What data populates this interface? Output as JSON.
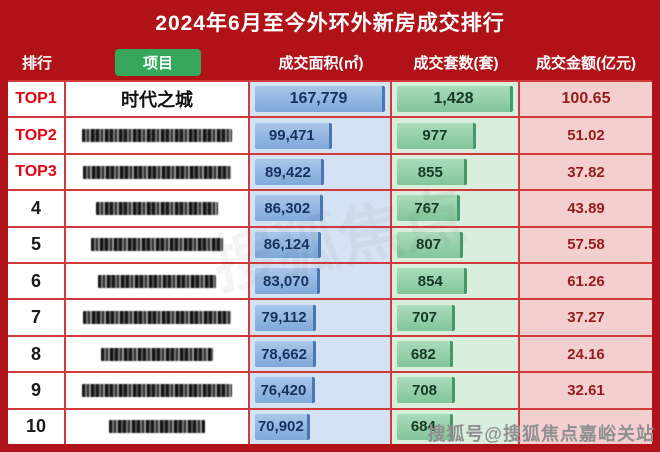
{
  "title": "2024年6月至今外环外新房成交排行",
  "columns": {
    "rank": "排行",
    "project": "项目",
    "area": "成交面积(㎡)",
    "units": "成交套数(套)",
    "amount": "成交金额(亿元)"
  },
  "rows": [
    {
      "rank": "TOP1",
      "project": "时代之城",
      "area": "167,779",
      "units": "1,428",
      "amount": "100.65",
      "area_pct": 100,
      "units_pct": 100,
      "top": true,
      "redacted": false,
      "mosaic_w": 0
    },
    {
      "rank": "TOP2",
      "project": "",
      "area": "99,471",
      "units": "977",
      "amount": "51.02",
      "area_pct": 59,
      "units_pct": 68,
      "top": true,
      "redacted": true,
      "mosaic_w": 150
    },
    {
      "rank": "TOP3",
      "project": "",
      "area": "89,422",
      "units": "855",
      "amount": "37.82",
      "area_pct": 53,
      "units_pct": 60,
      "top": true,
      "redacted": true,
      "mosaic_w": 148
    },
    {
      "rank": "4",
      "project": "",
      "area": "86,302",
      "units": "767",
      "amount": "43.89",
      "area_pct": 52,
      "units_pct": 54,
      "top": false,
      "redacted": true,
      "mosaic_w": 122
    },
    {
      "rank": "5",
      "project": "",
      "area": "86,124",
      "units": "807",
      "amount": "57.58",
      "area_pct": 51,
      "units_pct": 57,
      "top": false,
      "redacted": true,
      "mosaic_w": 132
    },
    {
      "rank": "6",
      "project": "",
      "area": "83,070",
      "units": "854",
      "amount": "61.26",
      "area_pct": 50,
      "units_pct": 60,
      "top": false,
      "redacted": true,
      "mosaic_w": 118
    },
    {
      "rank": "7",
      "project": "",
      "area": "79,112",
      "units": "707",
      "amount": "37.27",
      "area_pct": 47,
      "units_pct": 50,
      "top": false,
      "redacted": true,
      "mosaic_w": 148
    },
    {
      "rank": "8",
      "project": "",
      "area": "78,662",
      "units": "682",
      "amount": "24.16",
      "area_pct": 47,
      "units_pct": 48,
      "top": false,
      "redacted": true,
      "mosaic_w": 112
    },
    {
      "rank": "9",
      "project": "",
      "area": "76,420",
      "units": "708",
      "amount": "32.61",
      "area_pct": 46,
      "units_pct": 50,
      "top": false,
      "redacted": true,
      "mosaic_w": 150
    },
    {
      "rank": "10",
      "project": "",
      "area": "70,902",
      "units": "684",
      "amount": "",
      "area_pct": 42,
      "units_pct": 48,
      "top": false,
      "redacted": true,
      "mosaic_w": 96
    }
  ],
  "watermark": "搜狐号@搜狐焦点嘉峪关站",
  "faint_watermark": "搜狐焦点",
  "colors": {
    "frame": "#b01217",
    "grid": "#d03a3a",
    "top_rank": "#e60012",
    "area_bg": "#d4e3f3",
    "units_bg": "#d9eedd",
    "amount_bg": "#f3cfcf",
    "amount_text": "#951c1c",
    "pill": "#35a85c",
    "watermark": "#909090"
  },
  "chart_data": {
    "type": "table",
    "title": "2024年6月至今外环外新房成交排行",
    "columns": [
      "排行",
      "项目",
      "成交面积(㎡)",
      "成交套数(套)",
      "成交金额(亿元)"
    ],
    "rows": [
      [
        "TOP1",
        "时代之城",
        167779,
        1428,
        100.65
      ],
      [
        "TOP2",
        "",
        99471,
        977,
        51.02
      ],
      [
        "TOP3",
        "",
        89422,
        855,
        37.82
      ],
      [
        "4",
        "",
        86302,
        767,
        43.89
      ],
      [
        "5",
        "",
        86124,
        807,
        57.58
      ],
      [
        "6",
        "",
        83070,
        854,
        61.26
      ],
      [
        "7",
        "",
        79112,
        707,
        37.27
      ],
      [
        "8",
        "",
        78662,
        682,
        24.16
      ],
      [
        "9",
        "",
        76420,
        708,
        32.61
      ],
      [
        "10",
        "",
        70902,
        684,
        null
      ]
    ]
  }
}
